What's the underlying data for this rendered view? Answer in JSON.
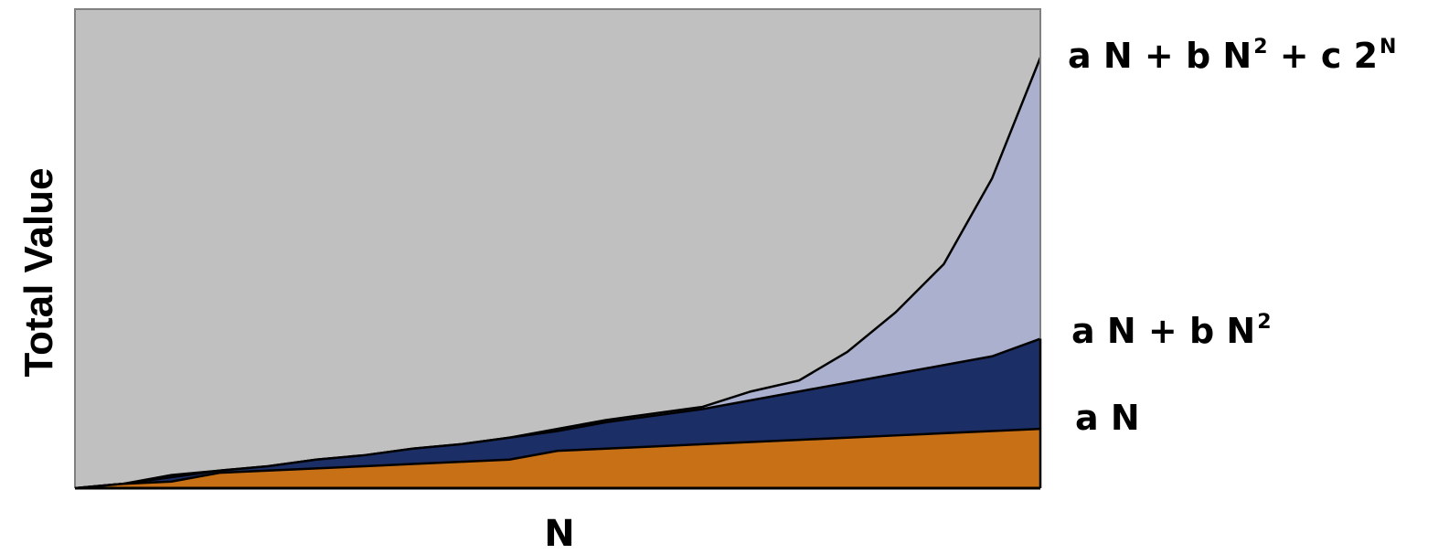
{
  "chart_data": {
    "type": "area",
    "stacked": true,
    "title": "",
    "xlabel": "N",
    "ylabel": "Total Value",
    "grid": false,
    "tick_labels": false,
    "x": [
      0,
      1,
      2,
      3,
      4,
      5,
      6,
      7,
      8,
      9,
      10,
      11,
      12,
      13,
      14,
      15,
      16,
      17,
      18,
      19,
      20
    ],
    "plot_background": "#c0c0c0",
    "series": [
      {
        "name": "a N",
        "color": "#c87016",
        "values": [
          0,
          2,
          3,
          7,
          8,
          9,
          10,
          11,
          12,
          13,
          17,
          18,
          19,
          20,
          21,
          22,
          23,
          24,
          25,
          26,
          27
        ]
      },
      {
        "name": "a N + b N²",
        "color": "#1c2e66",
        "values": [
          0,
          2,
          5,
          8,
          10,
          13,
          15,
          18,
          20,
          23,
          26,
          30,
          33,
          36,
          40,
          44,
          48,
          52,
          56,
          60,
          68
        ]
      },
      {
        "name": "a N + b N² + c 2ᴺ",
        "color": "#aab0cd",
        "values": [
          0,
          2,
          6,
          8,
          10,
          13,
          15,
          18,
          20,
          23,
          27,
          31,
          34,
          37,
          44,
          49,
          62,
          80,
          102,
          141,
          196
        ]
      }
    ],
    "ylim": [
      0,
      218
    ]
  },
  "labels": {
    "l1_main": "a N",
    "l2_main": "a N + b N",
    "l2_sup": "2",
    "l3_main": "a N + b N",
    "l3_sup1": "2",
    "l3_mid": " + c 2",
    "l3_sup2": "N"
  }
}
